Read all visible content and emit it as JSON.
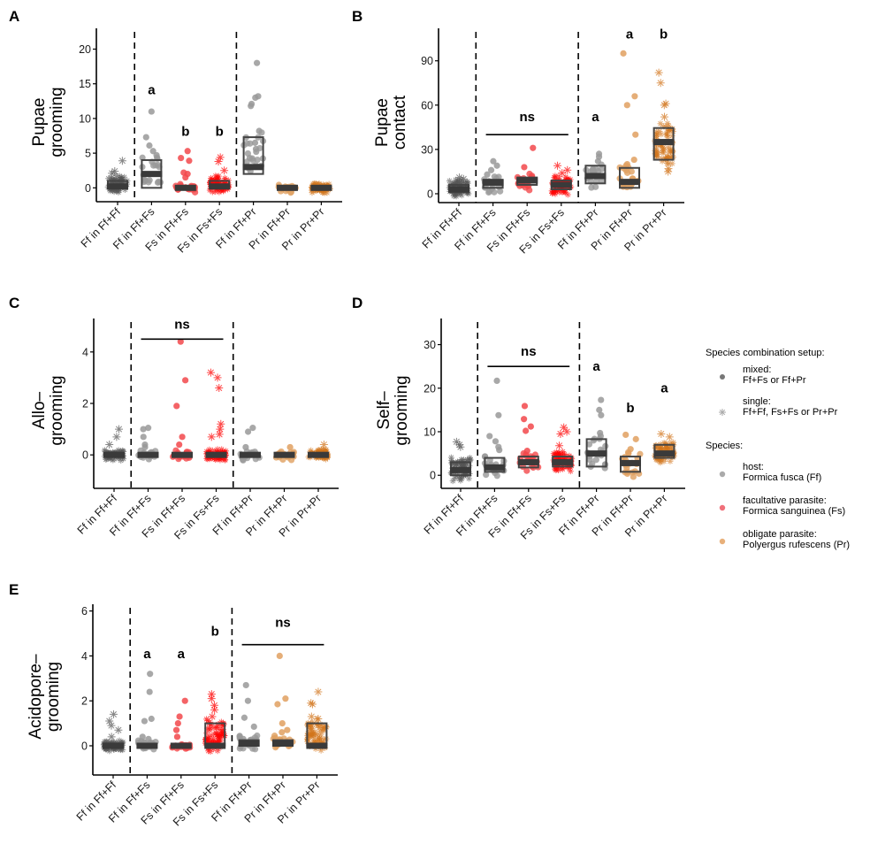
{
  "chart_data": [
    {
      "type": "scatter",
      "panel": "A",
      "ylabel": [
        "Pupae",
        "grooming"
      ],
      "ylim": [
        -2,
        23
      ],
      "yticks": [
        0,
        5,
        10,
        15,
        20
      ],
      "categories": [
        "Ff in Ff+Ff",
        "Ff in Ff+Fs",
        "Fs in Ff+Fs",
        "Fs in Fs+Fs",
        "Ff in Ff+Pr",
        "Pr in Ff+Pr",
        "Pr in Pr+Pr"
      ],
      "group_separators_after": [
        1,
        4
      ],
      "boxes": [
        {
          "q1": 0,
          "median": 0.2,
          "q3": 1
        },
        {
          "q1": 0,
          "median": 2,
          "q3": 4
        },
        {
          "q1": 0,
          "median": 0,
          "q3": 0
        },
        {
          "q1": 0,
          "median": 0.2,
          "q3": 1
        },
        {
          "q1": 2,
          "median": 3,
          "q3": 7.3
        },
        {
          "q1": 0,
          "median": 0,
          "q3": 0
        },
        {
          "q1": 0,
          "median": 0,
          "q3": 0
        }
      ],
      "outliers": [
        [
          3.9,
          2.4,
          2.1
        ],
        [
          11,
          7.3,
          6.1,
          5.3,
          4.7
        ],
        [
          5.3,
          4.3,
          3.9,
          2.2,
          2.0,
          1.5
        ],
        [
          4.4,
          3.8,
          2.5
        ],
        [
          18,
          13.2,
          13,
          12.1,
          11.8,
          8.2,
          6.5,
          5.6,
          5.2,
          4.3
        ],
        [],
        []
      ],
      "annotations": [
        {
          "text": "a",
          "category_index": 1,
          "y": 13.5
        },
        {
          "text": "b",
          "category_index": 2,
          "y": 7.5
        },
        {
          "text": "b",
          "category_index": 3,
          "y": 7.5
        }
      ],
      "ns_bars": []
    },
    {
      "type": "scatter",
      "panel": "B",
      "ylabel": [
        "Pupae",
        "contact"
      ],
      "ylim": [
        -6,
        112
      ],
      "yticks": [
        0,
        30,
        60,
        90
      ],
      "categories": [
        "Ff in Ff+Ff",
        "Ff in Ff+Fs",
        "Fs in Ff+Fs",
        "Fs in Fs+Fs",
        "Ff in Ff+Pr",
        "Pr in Ff+Pr",
        "Pr in Pr+Pr"
      ],
      "group_separators_after": [
        1,
        4
      ],
      "boxes": [
        {
          "q1": 1,
          "median": 3,
          "q3": 6
        },
        {
          "q1": 4,
          "median": 7.5,
          "q3": 9.5
        },
        {
          "q1": 6,
          "median": 9,
          "q3": 11
        },
        {
          "q1": 3,
          "median": 6,
          "q3": 9
        },
        {
          "q1": 7,
          "median": 12,
          "q3": 19
        },
        {
          "q1": 4,
          "median": 8,
          "q3": 17.5
        },
        {
          "q1": 23,
          "median": 35,
          "q3": 44.5
        }
      ],
      "outliers": [
        [
          11,
          10
        ],
        [
          22,
          19,
          16,
          13
        ],
        [
          31,
          18
        ],
        [
          19,
          16,
          14
        ],
        [
          27,
          25,
          22
        ],
        [
          95,
          66,
          60,
          40,
          23,
          20
        ],
        [
          82,
          75,
          61,
          60,
          52,
          17,
          15
        ]
      ],
      "annotations": [
        {
          "text": "ns",
          "category_index": 2,
          "y": 49
        },
        {
          "text": "a",
          "category_index": 4,
          "y": 49
        },
        {
          "text": "a",
          "category_index": 5,
          "y": 105
        },
        {
          "text": "b",
          "category_index": 6,
          "y": 105
        }
      ],
      "ns_bars": [
        {
          "from": 1,
          "to": 3,
          "y": 40
        }
      ]
    },
    {
      "type": "scatter",
      "panel": "C",
      "ylabel": [
        "Allo–",
        "grooming"
      ],
      "ylim": [
        -1.3,
        5.3
      ],
      "yticks": [
        0,
        2,
        4
      ],
      "categories": [
        "Ff in Ff+Ff",
        "Ff in Ff+Fs",
        "Fs in Ff+Fs",
        "Fs in Fs+Fs",
        "Ff in Ff+Pr",
        "Pr in Ff+Pr",
        "Pr in Pr+Pr"
      ],
      "group_separators_after": [
        1,
        4
      ],
      "boxes": [
        {
          "q1": 0,
          "median": 0,
          "q3": 0
        },
        {
          "q1": 0,
          "median": 0,
          "q3": 0
        },
        {
          "q1": 0,
          "median": 0,
          "q3": 0
        },
        {
          "q1": 0,
          "median": 0,
          "q3": 0
        },
        {
          "q1": 0,
          "median": 0,
          "q3": 0
        },
        {
          "q1": 0,
          "median": 0,
          "q3": 0
        },
        {
          "q1": 0,
          "median": 0,
          "q3": 0
        }
      ],
      "outliers": [
        [
          1.0,
          0.7,
          0.4
        ],
        [
          1.05,
          1.0,
          0.7,
          0.4,
          0.3
        ],
        [
          4.4,
          2.9,
          1.9,
          0.7,
          0.4
        ],
        [
          3.2,
          3.0,
          2.6,
          1.2,
          1.0,
          0.8,
          0.7
        ],
        [
          1.05,
          0.9,
          0.3
        ],
        [
          0.3
        ],
        [
          0.4
        ]
      ],
      "annotations": [
        {
          "text": "ns",
          "category_index": 2,
          "y": 4.9
        }
      ],
      "ns_bars": [
        {
          "from": 1,
          "to": 3,
          "y": 4.5
        }
      ]
    },
    {
      "type": "scatter",
      "panel": "D",
      "ylabel": [
        "Self–",
        "grooming"
      ],
      "ylim": [
        -3,
        36
      ],
      "yticks": [
        0,
        10,
        20,
        30
      ],
      "categories": [
        "Ff in Ff+Ff",
        "Ff in Ff+Fs",
        "Fs in Ff+Fs",
        "Fs in Fs+Fs",
        "Ff in Ff+Pr",
        "Pr in Ff+Pr",
        "Pr in Pr+Pr"
      ],
      "group_separators_after": [
        1,
        4
      ],
      "boxes": [
        {
          "q1": 0,
          "median": 1.2,
          "q3": 3
        },
        {
          "q1": 0.8,
          "median": 1.8,
          "q3": 4
        },
        {
          "q1": 1.8,
          "median": 3,
          "q3": 4.3
        },
        {
          "q1": 2,
          "median": 3,
          "q3": 4.3
        },
        {
          "q1": 2,
          "median": 5,
          "q3": 8.3
        },
        {
          "q1": 0.8,
          "median": 2.8,
          "q3": 4.3
        },
        {
          "q1": 4,
          "median": 5,
          "q3": 7
        }
      ],
      "outliers": [
        [
          7.7,
          7.0,
          6.5
        ],
        [
          21.7,
          13.8,
          9,
          7.8,
          6.5,
          5.8
        ],
        [
          15.9,
          12.9,
          11.2,
          10.2,
          5.6
        ],
        [
          11,
          10,
          9.5,
          6.8
        ],
        [
          17.3,
          15,
          13.8,
          9.7,
          9
        ],
        [
          9.3,
          8.3,
          6,
          5
        ],
        [
          9.5,
          8.8
        ]
      ],
      "annotations": [
        {
          "text": "ns",
          "category_index": 2,
          "y": 27.5
        },
        {
          "text": "a",
          "category_index": 4,
          "y": 24
        },
        {
          "text": "b",
          "category_index": 5,
          "y": 14.5
        },
        {
          "text": "a",
          "category_index": 6,
          "y": 19
        }
      ],
      "ns_bars": [
        {
          "from": 1,
          "to": 3,
          "y": 25
        }
      ]
    },
    {
      "type": "scatter",
      "panel": "E",
      "ylabel": [
        "Acidopore–",
        "grooming"
      ],
      "ylim": [
        -1.3,
        6.3
      ],
      "yticks": [
        0,
        2,
        4,
        6
      ],
      "categories": [
        "Ff in Ff+Ff",
        "Ff in Ff+Fs",
        "Fs in Ff+Fs",
        "Fs in Fs+Fs",
        "Ff in Ff+Pr",
        "Pr in Ff+Pr",
        "Pr in Pr+Pr"
      ],
      "group_separators_after": [
        1,
        4
      ],
      "boxes": [
        {
          "q1": 0,
          "median": 0,
          "q3": 0
        },
        {
          "q1": 0,
          "median": 0,
          "q3": 0
        },
        {
          "q1": 0,
          "median": 0,
          "q3": 0
        },
        {
          "q1": 0,
          "median": 0,
          "q3": 1
        },
        {
          "q1": 0,
          "median": 0.1,
          "q3": 0.25
        },
        {
          "q1": 0,
          "median": 0.1,
          "q3": 0.25
        },
        {
          "q1": 0,
          "median": 0,
          "q3": 1
        }
      ],
      "outliers": [
        [
          1.4,
          1.1,
          0.9,
          0.7,
          0.4
        ],
        [
          3.2,
          2.4,
          1.2,
          1.1,
          0.4,
          0.3
        ],
        [
          2.0,
          1.3,
          1.0,
          0.7,
          0.4
        ],
        [
          2.3,
          2.1,
          1.8,
          1.6,
          1.3
        ],
        [
          2.7,
          2.0,
          1.25,
          0.85,
          0.3
        ],
        [
          4.0,
          2.1,
          1.85,
          1.0,
          0.7,
          0.6
        ],
        [
          2.4,
          1.9,
          1.85,
          1.3,
          1.2,
          0.8
        ]
      ],
      "annotations": [
        {
          "text": "a",
          "category_index": 1,
          "y": 3.9
        },
        {
          "text": "a",
          "category_index": 2,
          "y": 3.9
        },
        {
          "text": "b",
          "category_index": 3,
          "y": 4.9
        },
        {
          "text": "ns",
          "category_index": 5,
          "y": 5.3
        }
      ],
      "ns_bars": [
        {
          "from": 4,
          "to": 6,
          "y": 4.5
        }
      ]
    }
  ],
  "category_colors": [
    "#555555",
    "#999999",
    "#f2484b",
    "#ff0000",
    "#999999",
    "#e0a060",
    "#d2741a"
  ],
  "category_marker": [
    "star",
    "dot",
    "dot",
    "star",
    "dot",
    "dot",
    "star"
  ],
  "legend": {
    "setup_title": "Species combination setup:",
    "setup_items": [
      {
        "marker": "dot",
        "color": "#777777",
        "line1": "mixed:",
        "line2": "Ff+Fs or Ff+Pr"
      },
      {
        "marker": "star",
        "color": "#aaaaaa",
        "line1": "single:",
        "line2": "Ff+Ff, Fs+Fs or Pr+Pr"
      }
    ],
    "species_title": "Species:",
    "species_items": [
      {
        "marker": "dot",
        "color": "#aaaaaa",
        "line1": "host:",
        "line2": "Formica fusca (Ff)"
      },
      {
        "marker": "dot",
        "color": "#f0707a",
        "line1": "facultative parasite:",
        "line2": "Formica sanguinea (Fs)"
      },
      {
        "marker": "dot",
        "color": "#e8b07a",
        "line1": "obligate parasite:",
        "line2": "Polyergus rufescens (Pr)"
      }
    ]
  }
}
